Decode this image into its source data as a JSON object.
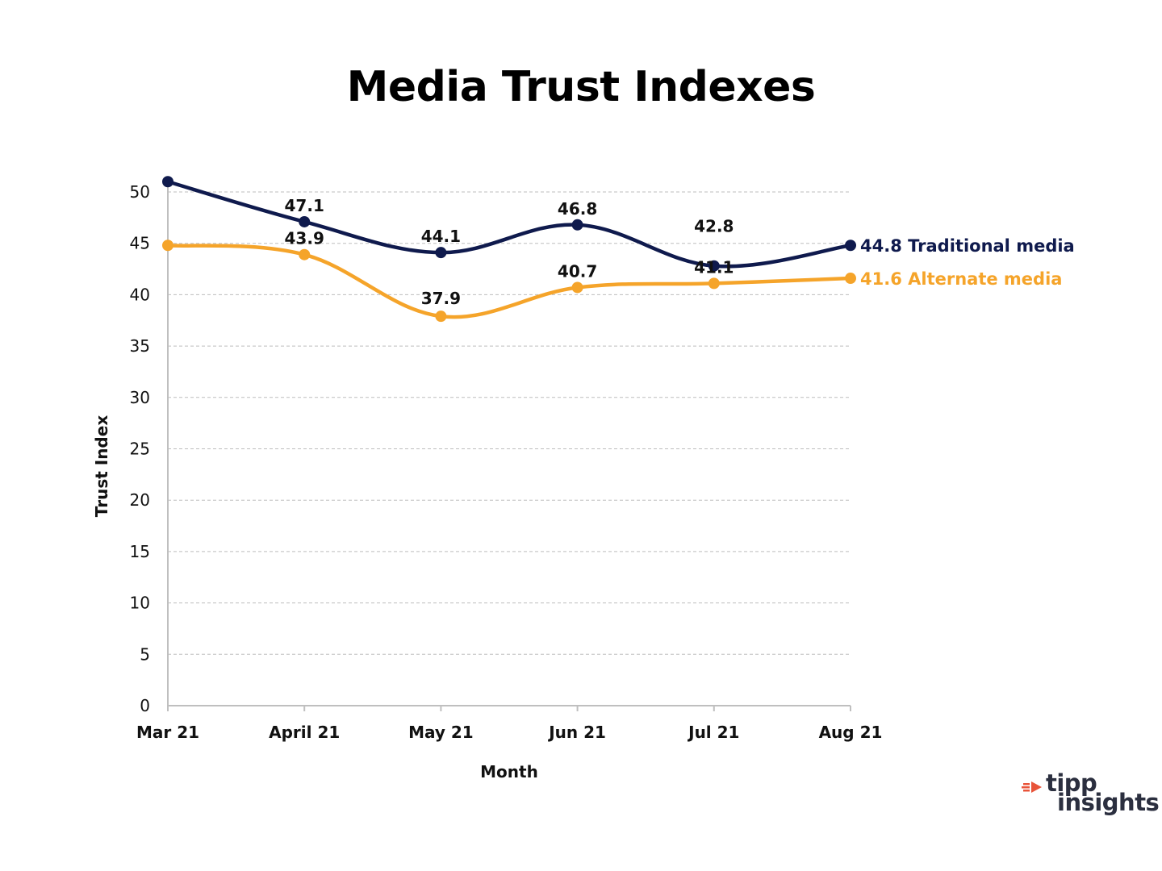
{
  "chart_data": {
    "type": "line",
    "title": "Media Trust Indexes",
    "xlabel": "Month",
    "ylabel": "Trust Index",
    "categories": [
      "Mar 21",
      "April 21",
      "May 21",
      "Jun 21",
      "Jul 21",
      "Aug 21"
    ],
    "ylim": [
      0,
      50
    ],
    "yticks": [
      0,
      5,
      10,
      15,
      20,
      25,
      30,
      35,
      40,
      45,
      50
    ],
    "grid": true,
    "series": [
      {
        "name": "Traditional media",
        "color": "#0f1a4d",
        "values": [
          51.0,
          47.1,
          44.1,
          46.8,
          42.8,
          44.8
        ],
        "labels": [
          "",
          "47.1",
          "44.1",
          "46.8",
          "42.8",
          "44.8"
        ],
        "end_label": "44.8 Traditional media"
      },
      {
        "name": "Alternate media",
        "color": "#f5a42a",
        "values": [
          44.8,
          43.9,
          37.9,
          40.7,
          41.1,
          41.6
        ],
        "labels": [
          "",
          "43.9",
          "37.9",
          "40.7",
          "41.1",
          "41.6"
        ],
        "end_label": "41.6 Alternate media"
      }
    ]
  },
  "logo": {
    "line1": "tipp",
    "line2": "insights",
    "accent_color": "#e8543a"
  }
}
